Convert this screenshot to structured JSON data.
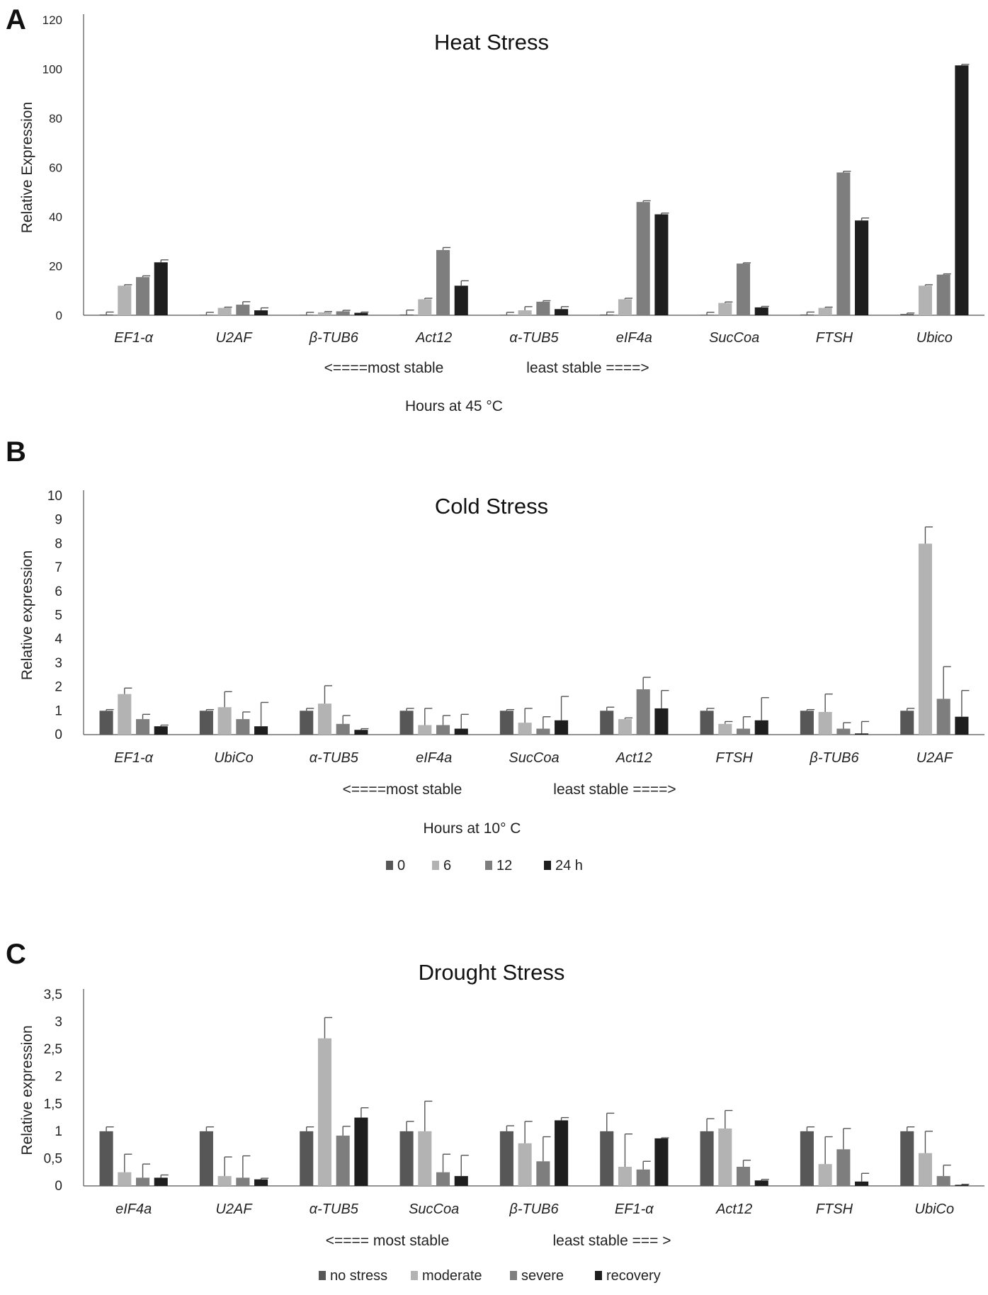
{
  "chart_data": [
    {
      "panel_label": "A",
      "type": "bar",
      "title": "Heat Stress",
      "ylabel": "Relative Expression",
      "ylim": [
        0,
        120
      ],
      "yticks": [
        0,
        20,
        40,
        60,
        80,
        100,
        120
      ],
      "ytick_labels": [
        "0",
        "20",
        "40",
        "60",
        "80",
        "100",
        "120"
      ],
      "categories": [
        "EF1-α",
        "U2AF",
        "β-TUB6",
        "Act12",
        "α-TUB5",
        "eIF4a",
        "SucCoa",
        "FTSH",
        "Ubico"
      ],
      "stability_left": "<====most stable",
      "stability_right": "least stable ====>",
      "legend_title": "Hours at 45 °C",
      "series": [
        {
          "name": "0",
          "color": "#575757",
          "values": [
            0.3,
            0.2,
            0.2,
            0.3,
            0.2,
            0.3,
            0.2,
            0.3,
            0.5
          ],
          "errors": [
            1.0,
            1.0,
            1.0,
            1.8,
            1.0,
            1.0,
            1.0,
            1.0,
            0.4
          ]
        },
        {
          "name": "6",
          "color": "#b3b3b3",
          "values": [
            12,
            3,
            1.2,
            6.5,
            2,
            6.5,
            5,
            3,
            12
          ],
          "errors": [
            0.4,
            0.3,
            0.3,
            0.4,
            1.5,
            0.4,
            0.4,
            0.3,
            0.4
          ]
        },
        {
          "name": "12",
          "color": "#7e7e7e",
          "values": [
            15.5,
            4.3,
            1.6,
            26.5,
            5.5,
            46,
            21,
            58,
            16.5
          ],
          "errors": [
            0.5,
            1.2,
            0.4,
            1.0,
            0.4,
            0.5,
            0.3,
            0.5,
            0.3
          ]
        },
        {
          "name": "24 h",
          "color": "#1e1e1e",
          "values": [
            21.5,
            2,
            1,
            12,
            2.5,
            41,
            3.2,
            38.5,
            101.5
          ],
          "errors": [
            1.0,
            1.0,
            0.3,
            2.0,
            1.0,
            0.5,
            0.4,
            1.0,
            0.4
          ]
        }
      ]
    },
    {
      "panel_label": "B",
      "type": "bar",
      "title": "Cold Stress",
      "ylabel": "Relative expression",
      "ylim": [
        0,
        10
      ],
      "yticks": [
        0,
        1,
        2,
        3,
        4,
        5,
        6,
        7,
        8,
        9,
        10
      ],
      "ytick_labels": [
        "0",
        "1",
        "2",
        "3",
        "4",
        "5",
        "6",
        "7",
        "8",
        "9",
        "10"
      ],
      "categories": [
        "EF1-α",
        "UbiCo",
        "α-TUB5",
        "eIF4a",
        "SucCoa",
        "Act12",
        "FTSH",
        "β-TUB6",
        "U2AF"
      ],
      "stability_left": "<====most stable",
      "stability_right": "least stable ====>",
      "legend_title": "Hours at 10° C",
      "series": [
        {
          "name": "0",
          "color": "#575757",
          "values": [
            1,
            1,
            1,
            1,
            1,
            1,
            1,
            1,
            1
          ],
          "errors": [
            0.05,
            0.05,
            0.1,
            0.1,
            0.05,
            0.15,
            0.1,
            0.05,
            0.1
          ]
        },
        {
          "name": "6",
          "color": "#b3b3b3",
          "values": [
            1.7,
            1.15,
            1.3,
            0.4,
            0.5,
            0.65,
            0.45,
            0.95,
            8
          ],
          "errors": [
            0.25,
            0.65,
            0.75,
            0.7,
            0.6,
            0.05,
            0.1,
            0.75,
            0.7
          ]
        },
        {
          "name": "12",
          "color": "#7e7e7e",
          "values": [
            0.65,
            0.65,
            0.45,
            0.4,
            0.25,
            1.9,
            0.25,
            0.25,
            1.5
          ],
          "errors": [
            0.2,
            0.3,
            0.35,
            0.4,
            0.5,
            0.5,
            0.5,
            0.25,
            1.35
          ]
        },
        {
          "name": "24 h",
          "color": "#1e1e1e",
          "values": [
            0.35,
            0.35,
            0.2,
            0.25,
            0.6,
            1.1,
            0.6,
            0.05,
            0.75
          ],
          "errors": [
            0.05,
            1.0,
            0.05,
            0.6,
            1.0,
            0.75,
            0.95,
            0.5,
            1.1
          ]
        }
      ]
    },
    {
      "panel_label": "C",
      "type": "bar",
      "title": "Drought Stress",
      "ylabel": "Relative expression",
      "ylim": [
        0,
        3.5
      ],
      "yticks": [
        0,
        0.5,
        1,
        1.5,
        2,
        2.5,
        3,
        3.5
      ],
      "ytick_labels": [
        "0",
        "0,5",
        "1",
        "1,5",
        "2",
        "2,5",
        "3",
        "3,5"
      ],
      "categories": [
        "eIF4a",
        "U2AF",
        "α-TUB5",
        "SucCoa",
        "β-TUB6",
        "EF1-α",
        "Act12",
        "FTSH",
        "UbiCo"
      ],
      "stability_left": "<==== most stable",
      "stability_right": "least stable === >",
      "legend_title": "",
      "series": [
        {
          "name": "no stress",
          "color": "#575757",
          "values": [
            1,
            1,
            1,
            1,
            1,
            1,
            1,
            1,
            1
          ],
          "errors": [
            0.08,
            0.08,
            0.08,
            0.18,
            0.1,
            0.33,
            0.23,
            0.08,
            0.08
          ]
        },
        {
          "name": "moderate",
          "color": "#b3b3b3",
          "values": [
            0.25,
            0.18,
            2.7,
            1,
            0.78,
            0.35,
            1.05,
            0.4,
            0.6
          ],
          "errors": [
            0.33,
            0.35,
            0.38,
            0.55,
            0.4,
            0.6,
            0.33,
            0.5,
            0.4
          ]
        },
        {
          "name": "severe",
          "color": "#7e7e7e",
          "values": [
            0.15,
            0.15,
            0.92,
            0.25,
            0.45,
            0.3,
            0.35,
            0.67,
            0.18
          ],
          "errors": [
            0.25,
            0.4,
            0.17,
            0.33,
            0.45,
            0.15,
            0.12,
            0.38,
            0.2
          ]
        },
        {
          "name": "recovery",
          "color": "#1e1e1e",
          "values": [
            0.15,
            0.12,
            1.25,
            0.18,
            1.2,
            0.87,
            0.1,
            0.08,
            0.02
          ],
          "errors": [
            0.05,
            0.02,
            0.18,
            0.38,
            0.05,
            0.01,
            0.02,
            0.15,
            0.01
          ]
        }
      ]
    }
  ]
}
